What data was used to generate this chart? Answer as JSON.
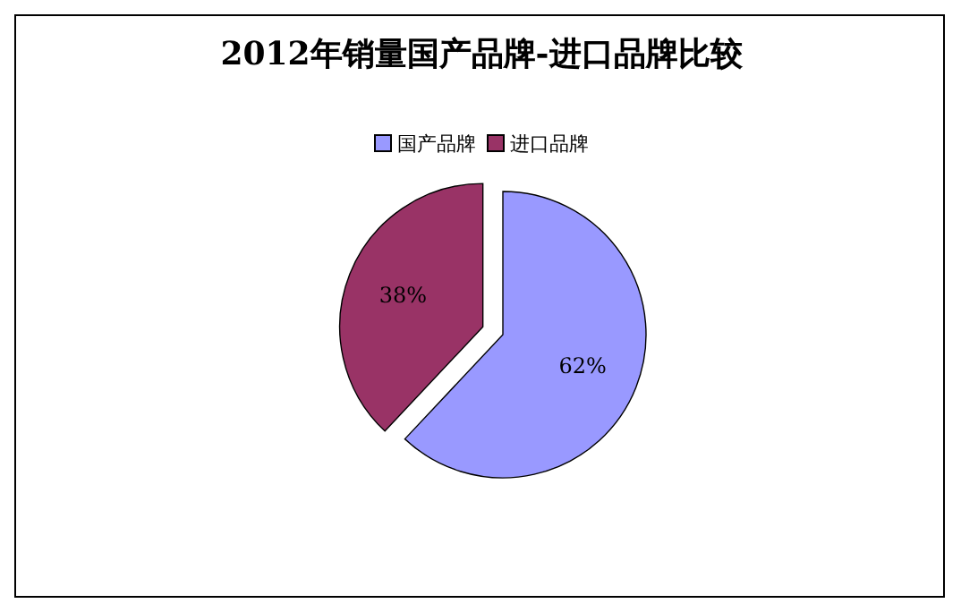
{
  "chart_data": {
    "type": "pie",
    "title": "2012年销量国产品牌-进口品牌比较",
    "categories": [
      "国产品牌",
      "进口品牌"
    ],
    "values": [
      62,
      38
    ],
    "colors": [
      "#9999ff",
      "#993366"
    ],
    "value_labels": [
      "62%",
      "38%"
    ],
    "legend": "top"
  }
}
